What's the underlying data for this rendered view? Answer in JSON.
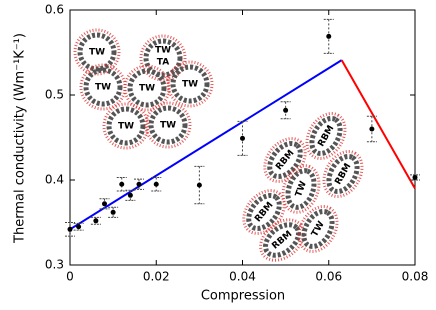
{
  "chart_data": {
    "type": "scatter",
    "x": [
      0,
      0.002,
      0.006,
      0.008,
      0.01,
      0.012,
      0.014,
      0.016,
      0.02,
      0.03,
      0.04,
      0.05,
      0.06,
      0.07,
      0.08
    ],
    "values": [
      0.342,
      0.345,
      0.352,
      0.372,
      0.362,
      0.395,
      0.382,
      0.395,
      0.395,
      0.394,
      0.449,
      0.482,
      0.569,
      0.46,
      0.403
    ],
    "errors": [
      0.008,
      0.004,
      0.004,
      0.006,
      0.006,
      0.008,
      0.006,
      0.006,
      0.008,
      0.022,
      0.02,
      0.01,
      0.02,
      0.015,
      0.003
    ],
    "color": "#000000",
    "lines": [
      {
        "color": "#0000ff",
        "x": [
          0,
          0.063
        ],
        "values": [
          0.342,
          0.541
        ]
      },
      {
        "color": "#ff0000",
        "x": [
          0.063,
          0.08
        ],
        "values": [
          0.541,
          0.39
        ]
      }
    ],
    "xlabel": "Compression",
    "ylabel": "Thermal conductivity (Wm⁻¹K⁻¹)",
    "xlim": [
      0,
      0.08
    ],
    "ylim": [
      0.3,
      0.6
    ],
    "xticks": [
      0,
      0.02,
      0.04,
      0.06,
      0.08
    ],
    "yticks": [
      0.3,
      0.4,
      0.5,
      0.6
    ],
    "grid": false,
    "insets": [
      {
        "labels": [
          "TW",
          "TW",
          "TA",
          "TW",
          "TW",
          "TW",
          "TW",
          "TW"
        ]
      },
      {
        "labels": [
          "RBM",
          "RBM",
          "RBM",
          "TW",
          "RBM",
          "RBM",
          "TW"
        ]
      }
    ]
  }
}
